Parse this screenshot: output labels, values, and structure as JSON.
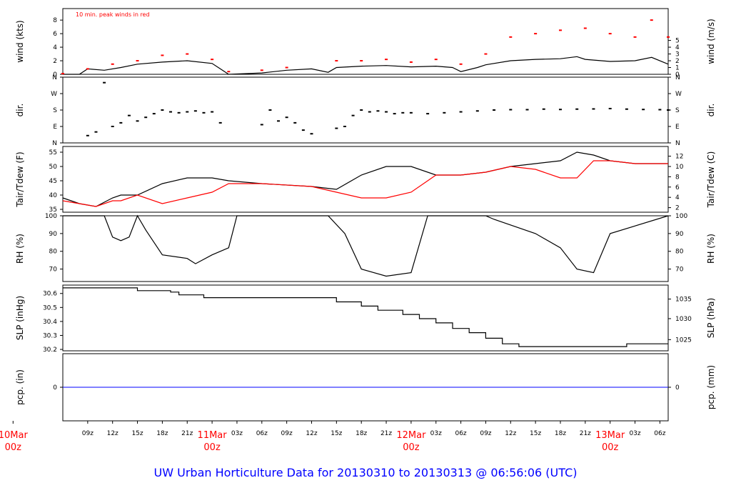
{
  "title": "UW Urban Horticulture Data for 20130310  to  20130313 @ 06:56:06  (UTC)",
  "colors": {
    "frame": "#000000",
    "peak": "#ff0000",
    "dew": "#ff0000",
    "precip": "#0000ff",
    "date": "#ff0000",
    "title": "#0000ff"
  },
  "x_axis": {
    "range": [
      "2013-03-10 06:00",
      "2013-03-13 07:00"
    ],
    "hour_ticks": [
      {
        "time": "2013-03-10 09:00",
        "label": "09z"
      },
      {
        "time": "2013-03-10 12:00",
        "label": "12z"
      },
      {
        "time": "2013-03-10 15:00",
        "label": "15z"
      },
      {
        "time": "2013-03-10 18:00",
        "label": "18z"
      },
      {
        "time": "2013-03-10 21:00",
        "label": "21z"
      },
      {
        "time": "2013-03-11 03:00",
        "label": "03z"
      },
      {
        "time": "2013-03-11 06:00",
        "label": "06z"
      },
      {
        "time": "2013-03-11 09:00",
        "label": "09z"
      },
      {
        "time": "2013-03-11 12:00",
        "label": "12z"
      },
      {
        "time": "2013-03-11 15:00",
        "label": "15z"
      },
      {
        "time": "2013-03-11 18:00",
        "label": "18z"
      },
      {
        "time": "2013-03-11 21:00",
        "label": "21z"
      },
      {
        "time": "2013-03-12 03:00",
        "label": "03z"
      },
      {
        "time": "2013-03-12 06:00",
        "label": "06z"
      },
      {
        "time": "2013-03-12 09:00",
        "label": "09z"
      },
      {
        "time": "2013-03-12 12:00",
        "label": "12z"
      },
      {
        "time": "2013-03-12 15:00",
        "label": "15z"
      },
      {
        "time": "2013-03-12 18:00",
        "label": "18z"
      },
      {
        "time": "2013-03-12 21:00",
        "label": "21z"
      },
      {
        "time": "2013-03-13 03:00",
        "label": "03z"
      },
      {
        "time": "2013-03-13 06:00",
        "label": "06z"
      }
    ],
    "day_labels": [
      {
        "time": "2013-03-10 00:00",
        "day": "10Mar",
        "hour": "00z"
      },
      {
        "time": "2013-03-11 00:00",
        "day": "11Mar",
        "hour": "00z"
      },
      {
        "time": "2013-03-12 00:00",
        "day": "12Mar",
        "hour": "00z"
      },
      {
        "time": "2013-03-13 00:00",
        "day": "13Mar",
        "hour": "00z"
      }
    ]
  },
  "chart_data": [
    {
      "type": "line",
      "ylabel": "wind (kts)",
      "ylabel_right": "wind (m/s)",
      "annotation": "10 min. peak winds in red",
      "ylim": [
        0,
        9.7
      ],
      "yticks_left": [
        "0",
        "2",
        "4",
        "6",
        "8"
      ],
      "yticks_left_values": [
        0,
        2,
        4,
        6,
        8
      ],
      "yticks_right": [
        "0",
        "1",
        "2",
        "3",
        "4",
        "5"
      ],
      "yticks_right_values": [
        0,
        1,
        2,
        3,
        4,
        5
      ],
      "series": [
        {
          "key": "wind",
          "style": "line",
          "color": "#000000",
          "x": [
            "2013-03-10 06:00",
            "2013-03-10 08:00",
            "2013-03-10 09:00",
            "2013-03-10 11:00",
            "2013-03-10 13:00",
            "2013-03-10 15:00",
            "2013-03-10 18:00",
            "2013-03-10 21:00",
            "2013-03-11 00:00",
            "2013-03-11 01:00",
            "2013-03-11 02:00",
            "2013-03-11 06:00",
            "2013-03-11 09:00",
            "2013-03-11 12:00",
            "2013-03-11 14:00",
            "2013-03-11 15:00",
            "2013-03-11 18:00",
            "2013-03-11 21:00",
            "2013-03-12 00:00",
            "2013-03-12 03:00",
            "2013-03-12 05:00",
            "2013-03-12 06:00",
            "2013-03-12 08:00",
            "2013-03-12 09:00",
            "2013-03-12 12:00",
            "2013-03-12 15:00",
            "2013-03-12 18:00",
            "2013-03-12 20:00",
            "2013-03-12 21:00",
            "2013-03-13 00:00",
            "2013-03-13 03:00",
            "2013-03-13 05:00",
            "2013-03-13 07:00"
          ],
          "y": [
            0,
            0,
            0.8,
            0.6,
            1.0,
            1.5,
            1.8,
            2.0,
            1.6,
            0.8,
            0,
            0.2,
            0.6,
            0.8,
            0.3,
            1.0,
            1.2,
            1.3,
            1.1,
            1.2,
            1.0,
            0.4,
            1.0,
            1.4,
            2.0,
            2.2,
            2.3,
            2.6,
            2.2,
            1.9,
            2.0,
            2.5,
            1.5
          ]
        },
        {
          "key": "peak",
          "style": "points",
          "color": "#ff0000",
          "x": [
            "2013-03-10 06:00",
            "2013-03-10 09:00",
            "2013-03-10 12:00",
            "2013-03-10 15:00",
            "2013-03-10 18:00",
            "2013-03-10 21:00",
            "2013-03-11 00:00",
            "2013-03-11 02:00",
            "2013-03-11 06:00",
            "2013-03-11 09:00",
            "2013-03-11 15:00",
            "2013-03-11 18:00",
            "2013-03-11 21:00",
            "2013-03-12 00:00",
            "2013-03-12 03:00",
            "2013-03-12 06:00",
            "2013-03-12 09:00",
            "2013-03-12 12:00",
            "2013-03-12 15:00",
            "2013-03-12 18:00",
            "2013-03-12 21:00",
            "2013-03-13 00:00",
            "2013-03-13 03:00",
            "2013-03-13 05:00",
            "2013-03-13 07:00"
          ],
          "y": [
            0.1,
            0.8,
            1.5,
            2.0,
            2.8,
            3.0,
            2.2,
            0.4,
            0.6,
            1.0,
            2.0,
            2.0,
            2.2,
            1.8,
            2.2,
            1.5,
            3.0,
            5.5,
            6.0,
            6.5,
            6.8,
            6.0,
            5.5,
            8.0,
            5.5
          ]
        }
      ]
    },
    {
      "type": "scatter",
      "ylabel": "dir.",
      "ylabel_right": "dir.",
      "ylim": [
        0,
        360
      ],
      "yticks_left": [
        "N",
        "E",
        "S",
        "W",
        "N"
      ],
      "yticks_left_values": [
        0,
        90,
        180,
        270,
        360
      ],
      "yticks_right": [
        "N",
        "E",
        "S",
        "W",
        "N"
      ],
      "yticks_right_values": [
        0,
        90,
        180,
        270,
        360
      ],
      "series": [
        {
          "key": "dir",
          "style": "points",
          "color": "#000000",
          "x": [
            "2013-03-10 09:00",
            "2013-03-10 10:00",
            "2013-03-10 11:00",
            "2013-03-10 12:00",
            "2013-03-10 13:00",
            "2013-03-10 14:00",
            "2013-03-10 15:00",
            "2013-03-10 16:00",
            "2013-03-10 17:00",
            "2013-03-10 18:00",
            "2013-03-10 19:00",
            "2013-03-10 20:00",
            "2013-03-10 21:00",
            "2013-03-10 22:00",
            "2013-03-10 23:00",
            "2013-03-11 00:00",
            "2013-03-11 01:00",
            "2013-03-11 06:00",
            "2013-03-11 07:00",
            "2013-03-11 08:00",
            "2013-03-11 09:00",
            "2013-03-11 10:00",
            "2013-03-11 11:00",
            "2013-03-11 12:00",
            "2013-03-11 15:00",
            "2013-03-11 16:00",
            "2013-03-11 17:00",
            "2013-03-11 18:00",
            "2013-03-11 19:00",
            "2013-03-11 20:00",
            "2013-03-11 21:00",
            "2013-03-11 22:00",
            "2013-03-11 23:00",
            "2013-03-12 00:00",
            "2013-03-12 02:00",
            "2013-03-12 04:00",
            "2013-03-12 06:00",
            "2013-03-12 08:00",
            "2013-03-12 10:00",
            "2013-03-12 12:00",
            "2013-03-12 14:00",
            "2013-03-12 16:00",
            "2013-03-12 18:00",
            "2013-03-12 20:00",
            "2013-03-12 22:00",
            "2013-03-13 00:00",
            "2013-03-13 02:00",
            "2013-03-13 04:00",
            "2013-03-13 06:00",
            "2013-03-13 07:00"
          ],
          "y": [
            40,
            60,
            330,
            90,
            110,
            150,
            120,
            140,
            160,
            180,
            170,
            165,
            170,
            175,
            165,
            170,
            110,
            100,
            180,
            120,
            140,
            110,
            70,
            50,
            80,
            90,
            150,
            180,
            170,
            175,
            170,
            160,
            165,
            165,
            160,
            165,
            170,
            175,
            180,
            182,
            182,
            185,
            183,
            185,
            186,
            188,
            185,
            183,
            182,
            180
          ]
        }
      ]
    },
    {
      "type": "line",
      "ylabel": "Tair/Tdew (F)",
      "ylabel_right": "Tair/Tdew (C)",
      "ylim": [
        34,
        57
      ],
      "yticks_left": [
        "35",
        "40",
        "45",
        "50",
        "55"
      ],
      "yticks_left_values": [
        35,
        40,
        45,
        50,
        55
      ],
      "yticks_right": [
        "2",
        "4",
        "6",
        "8",
        "10",
        "12"
      ],
      "yticks_right_values": [
        35.6,
        39.2,
        42.8,
        46.4,
        50,
        53.6
      ],
      "series": [
        {
          "key": "tair",
          "style": "line",
          "color": "#000000",
          "x": [
            "2013-03-10 06:00",
            "2013-03-10 08:00",
            "2013-03-10 10:00",
            "2013-03-10 12:00",
            "2013-03-10 13:00",
            "2013-03-10 15:00",
            "2013-03-10 18:00",
            "2013-03-10 21:00",
            "2013-03-11 00:00",
            "2013-03-11 02:00",
            "2013-03-11 06:00",
            "2013-03-11 12:00",
            "2013-03-11 15:00",
            "2013-03-11 18:00",
            "2013-03-11 21:00",
            "2013-03-12 00:00",
            "2013-03-12 03:00",
            "2013-03-12 06:00",
            "2013-03-12 09:00",
            "2013-03-12 12:00",
            "2013-03-12 15:00",
            "2013-03-12 18:00",
            "2013-03-12 20:00",
            "2013-03-12 22:00",
            "2013-03-13 00:00",
            "2013-03-13 03:00",
            "2013-03-13 07:00"
          ],
          "y": [
            39,
            37,
            36,
            39,
            40,
            40,
            44,
            46,
            46,
            45,
            44,
            43,
            42,
            47,
            50,
            50,
            47,
            47,
            48,
            50,
            51,
            52,
            55,
            54,
            52,
            51,
            51
          ]
        },
        {
          "key": "tdew",
          "style": "line",
          "color": "#ff0000",
          "x": [
            "2013-03-10 06:00",
            "2013-03-10 08:00",
            "2013-03-10 10:00",
            "2013-03-10 12:00",
            "2013-03-10 13:00",
            "2013-03-10 15:00",
            "2013-03-10 18:00",
            "2013-03-10 21:00",
            "2013-03-11 00:00",
            "2013-03-11 02:00",
            "2013-03-11 06:00",
            "2013-03-11 12:00",
            "2013-03-11 15:00",
            "2013-03-11 18:00",
            "2013-03-11 21:00",
            "2013-03-12 00:00",
            "2013-03-12 03:00",
            "2013-03-12 06:00",
            "2013-03-12 09:00",
            "2013-03-12 12:00",
            "2013-03-12 15:00",
            "2013-03-12 18:00",
            "2013-03-12 20:00",
            "2013-03-12 22:00",
            "2013-03-13 00:00",
            "2013-03-13 03:00",
            "2013-03-13 07:00"
          ],
          "y": [
            38,
            37,
            36,
            38,
            38,
            40,
            37,
            39,
            41,
            44,
            44,
            43,
            41,
            39,
            39,
            41,
            47,
            47,
            48,
            50,
            49,
            46,
            46,
            52,
            52,
            51,
            51
          ]
        }
      ]
    },
    {
      "type": "line",
      "ylabel": "RH (%)",
      "ylabel_right": "RH (%)",
      "ylim": [
        63,
        100
      ],
      "yticks_left": [
        "70",
        "80",
        "90",
        "100"
      ],
      "yticks_left_values": [
        70,
        80,
        90,
        100
      ],
      "yticks_right": [
        "70",
        "80",
        "90",
        "100"
      ],
      "yticks_right_values": [
        70,
        80,
        90,
        100
      ],
      "series": [
        {
          "key": "rh",
          "style": "line",
          "color": "#000000",
          "x": [
            "2013-03-10 06:00",
            "2013-03-10 11:00",
            "2013-03-10 12:00",
            "2013-03-10 13:00",
            "2013-03-10 14:00",
            "2013-03-10 15:00",
            "2013-03-10 16:00",
            "2013-03-10 18:00",
            "2013-03-10 21:00",
            "2013-03-10 22:00",
            "2013-03-11 00:00",
            "2013-03-11 02:00",
            "2013-03-11 03:00",
            "2013-03-11 14:00",
            "2013-03-11 16:00",
            "2013-03-11 18:00",
            "2013-03-11 21:00",
            "2013-03-12 00:00",
            "2013-03-12 02:00",
            "2013-03-12 09:00",
            "2013-03-12 10:00",
            "2013-03-12 15:00",
            "2013-03-12 18:00",
            "2013-03-12 20:00",
            "2013-03-12 22:00",
            "2013-03-13 00:00",
            "2013-03-13 07:00"
          ],
          "y": [
            100,
            100,
            88,
            86,
            88,
            100,
            92,
            78,
            76,
            73,
            78,
            82,
            100,
            100,
            90,
            70,
            66,
            68,
            100,
            100,
            98,
            90,
            82,
            70,
            68,
            90,
            100
          ]
        }
      ]
    },
    {
      "type": "line",
      "ylabel": "SLP (inHg)",
      "ylabel_right": "SLP (hPa)",
      "ylim": [
        30.19,
        30.66
      ],
      "yticks_left": [
        "30.2",
        "30.3",
        "30.4",
        "30.5",
        "30.6"
      ],
      "yticks_left_values": [
        30.2,
        30.3,
        30.4,
        30.5,
        30.6
      ],
      "yticks_right": [
        "1025",
        "1030",
        "1035"
      ],
      "yticks_right_values": [
        30.27,
        30.42,
        30.56
      ],
      "series": [
        {
          "key": "slp",
          "style": "step",
          "color": "#000000",
          "x": [
            "2013-03-10 06:00",
            "2013-03-10 13:00",
            "2013-03-10 15:00",
            "2013-03-10 19:00",
            "2013-03-10 20:00",
            "2013-03-10 23:00",
            "2013-03-11 09:00",
            "2013-03-11 15:00",
            "2013-03-11 18:00",
            "2013-03-11 20:00",
            "2013-03-11 23:00",
            "2013-03-12 01:00",
            "2013-03-12 03:00",
            "2013-03-12 05:00",
            "2013-03-12 07:00",
            "2013-03-12 09:00",
            "2013-03-12 11:00",
            "2013-03-12 13:00",
            "2013-03-13 02:00",
            "2013-03-13 07:00"
          ],
          "y": [
            30.64,
            30.64,
            30.62,
            30.61,
            30.59,
            30.57,
            30.57,
            30.54,
            30.51,
            30.48,
            30.45,
            30.42,
            30.39,
            30.35,
            30.32,
            30.28,
            30.24,
            30.22,
            30.24,
            30.24
          ]
        }
      ]
    },
    {
      "type": "line",
      "ylabel": "pcp. (in)",
      "ylabel_right": "pcp. (mm)",
      "ylim": [
        -1,
        1
      ],
      "yticks_left": [
        "0"
      ],
      "yticks_left_values": [
        0
      ],
      "yticks_right": [
        "0"
      ],
      "yticks_right_values": [
        0
      ],
      "series": [
        {
          "key": "pcp",
          "style": "line",
          "color": "#0000ff",
          "x": [
            "2013-03-10 06:00",
            "2013-03-13 07:00"
          ],
          "y": [
            0,
            0
          ]
        }
      ]
    }
  ]
}
